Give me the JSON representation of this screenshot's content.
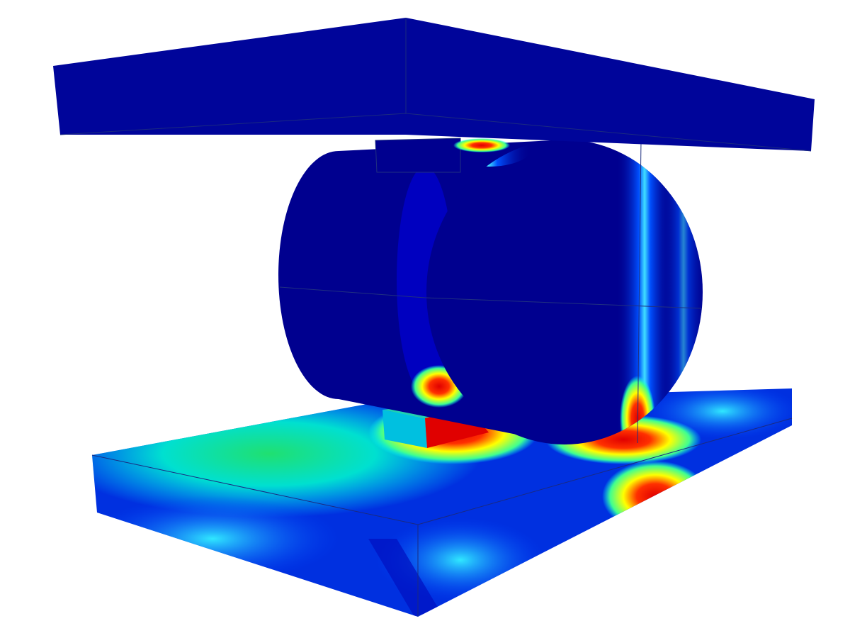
{
  "scene": {
    "background": "#ffffff",
    "colormap": [
      "#00008f",
      "#0000ff",
      "#00ffff",
      "#00ff7f",
      "#ffff00",
      "#ff0000"
    ],
    "parts": [
      "top-plate",
      "cylinder",
      "bottom-plate",
      "top-key-block",
      "bottom-key-block"
    ]
  }
}
